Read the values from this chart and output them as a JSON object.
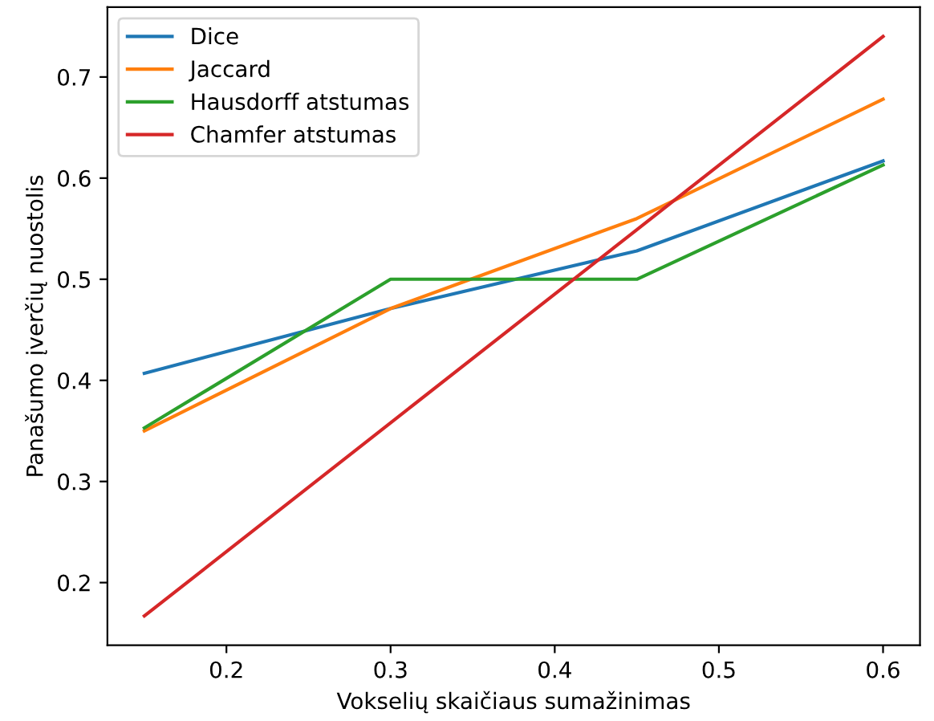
{
  "chart_data": {
    "type": "line",
    "xlabel": "Vokselių skaičiaus sumažinimas",
    "ylabel": "Panašumo įverčių nuostolis",
    "x": [
      0.15,
      0.3,
      0.45,
      0.6
    ],
    "series": [
      {
        "name": "Dice",
        "color": "#1f77b4",
        "values": [
          0.407,
          0.471,
          0.528,
          0.617
        ]
      },
      {
        "name": "Jaccard",
        "color": "#ff7f0e",
        "values": [
          0.35,
          0.471,
          0.56,
          0.678
        ]
      },
      {
        "name": "Hausdorff atstumas",
        "color": "#2ca02c",
        "values": [
          0.353,
          0.5,
          0.5,
          0.613
        ]
      },
      {
        "name": "Chamfer atstumas",
        "color": "#d62728",
        "values": [
          0.167,
          0.358,
          0.549,
          0.74
        ]
      }
    ],
    "xlim": [
      0.1275,
      0.6225
    ],
    "ylim": [
      0.138,
      0.769
    ],
    "xticks": [
      0.2,
      0.3,
      0.4,
      0.5,
      0.6
    ],
    "yticks": [
      0.2,
      0.3,
      0.4,
      0.5,
      0.6,
      0.7
    ],
    "legend": "top left",
    "grid": false,
    "marker": "none",
    "line_style": "solid"
  }
}
